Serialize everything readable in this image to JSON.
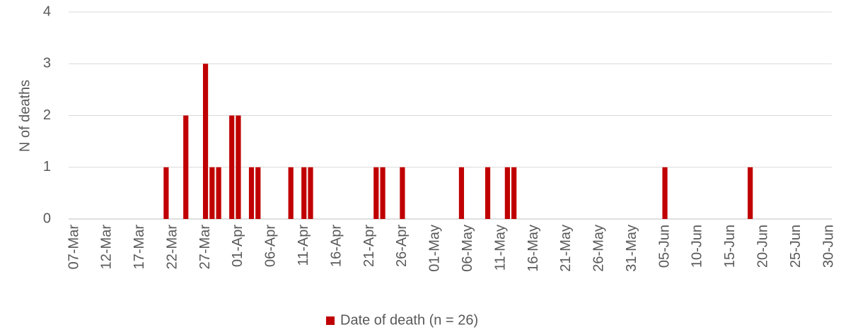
{
  "chart_data": {
    "type": "bar",
    "y_label": "N of deaths",
    "legend": "Date of death (n = 26)",
    "color": "#c00000",
    "grid": true,
    "categories": [
      "07-Mar",
      null,
      null,
      null,
      null,
      "12-Mar",
      null,
      null,
      null,
      null,
      "17-Mar",
      null,
      null,
      null,
      null,
      "22-Mar",
      null,
      null,
      null,
      null,
      "27-Mar",
      null,
      null,
      null,
      null,
      "01-Apr",
      null,
      null,
      null,
      null,
      "06-Apr",
      null,
      null,
      null,
      null,
      "11-Apr",
      null,
      null,
      null,
      null,
      "16-Apr",
      null,
      null,
      null,
      null,
      "21-Apr",
      null,
      null,
      null,
      null,
      "26-Apr",
      null,
      null,
      null,
      null,
      "01-May",
      null,
      null,
      null,
      null,
      "06-May",
      null,
      null,
      null,
      null,
      "11-May",
      null,
      null,
      null,
      null,
      "16-May",
      null,
      null,
      null,
      null,
      "21-May",
      null,
      null,
      null,
      null,
      "26-May",
      null,
      null,
      null,
      null,
      "31-May",
      null,
      null,
      null,
      null,
      "05-Jun",
      null,
      null,
      null,
      null,
      "10-Jun",
      null,
      null,
      null,
      null,
      "15-Jun",
      null,
      null,
      null,
      null,
      "20-Jun",
      null,
      null,
      null,
      null,
      "25-Jun",
      null,
      null,
      null,
      null,
      "30-Jun"
    ],
    "values": [
      0,
      0,
      0,
      0,
      0,
      0,
      0,
      0,
      0,
      0,
      0,
      0,
      0,
      0,
      1,
      0,
      0,
      2,
      0,
      0,
      3,
      1,
      1,
      0,
      2,
      2,
      0,
      1,
      1,
      0,
      0,
      0,
      0,
      1,
      0,
      1,
      1,
      0,
      0,
      0,
      0,
      0,
      0,
      0,
      0,
      0,
      1,
      1,
      0,
      0,
      1,
      0,
      0,
      0,
      0,
      0,
      0,
      0,
      0,
      1,
      0,
      0,
      0,
      1,
      0,
      0,
      1,
      1,
      0,
      0,
      0,
      0,
      0,
      0,
      0,
      0,
      0,
      0,
      0,
      0,
      0,
      0,
      0,
      0,
      0,
      0,
      0,
      0,
      0,
      0,
      1,
      0,
      0,
      0,
      0,
      0,
      0,
      0,
      0,
      0,
      0,
      0,
      0,
      1,
      0,
      0,
      0,
      0,
      0,
      0,
      0,
      0,
      0,
      0,
      0,
      0
    ],
    "ylim": [
      0,
      4
    ],
    "yticks": [
      0,
      1,
      2,
      3,
      4
    ]
  }
}
